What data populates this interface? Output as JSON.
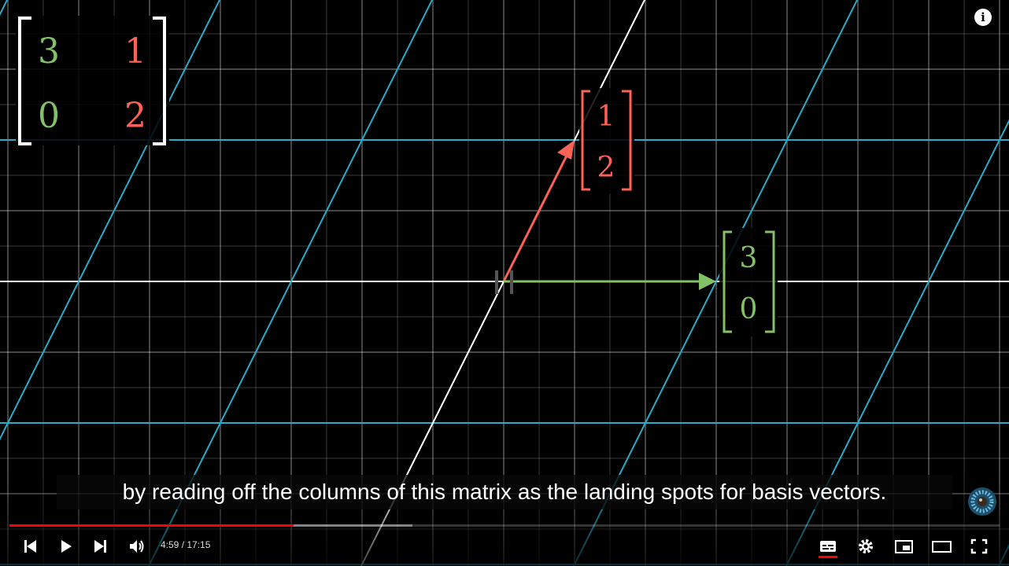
{
  "player": {
    "caption": "by reading off the columns of this matrix as the landing spots for basis vectors.",
    "time_current": "4:59",
    "time_separator": " / ",
    "time_total": "17:15",
    "progress_played_fraction": 0.287,
    "progress_buffered_fraction": 0.407,
    "colors": {
      "played": "#ff0000",
      "buffered": "#ffffff66"
    },
    "controls": {
      "previous": "skip-previous-icon",
      "play": "play-icon",
      "next": "skip-next-icon",
      "volume": "volume-icon",
      "subtitles": "subtitles-icon",
      "settings": "gear-icon",
      "miniplayer": "miniplayer-icon",
      "theater": "theater-mode-icon",
      "fullscreen": "fullscreen-icon",
      "info": "info-icon"
    }
  },
  "scene": {
    "colors": {
      "i_hat": "#83c167",
      "j_hat": "#fc6255",
      "grid": "#29abca",
      "background": "#000000"
    },
    "matrix": {
      "a": "3",
      "b": "1",
      "c": "0",
      "d": "2"
    },
    "vector_j": {
      "top": "1",
      "bottom": "2"
    },
    "vector_i": {
      "top": "3",
      "bottom": "0"
    }
  }
}
